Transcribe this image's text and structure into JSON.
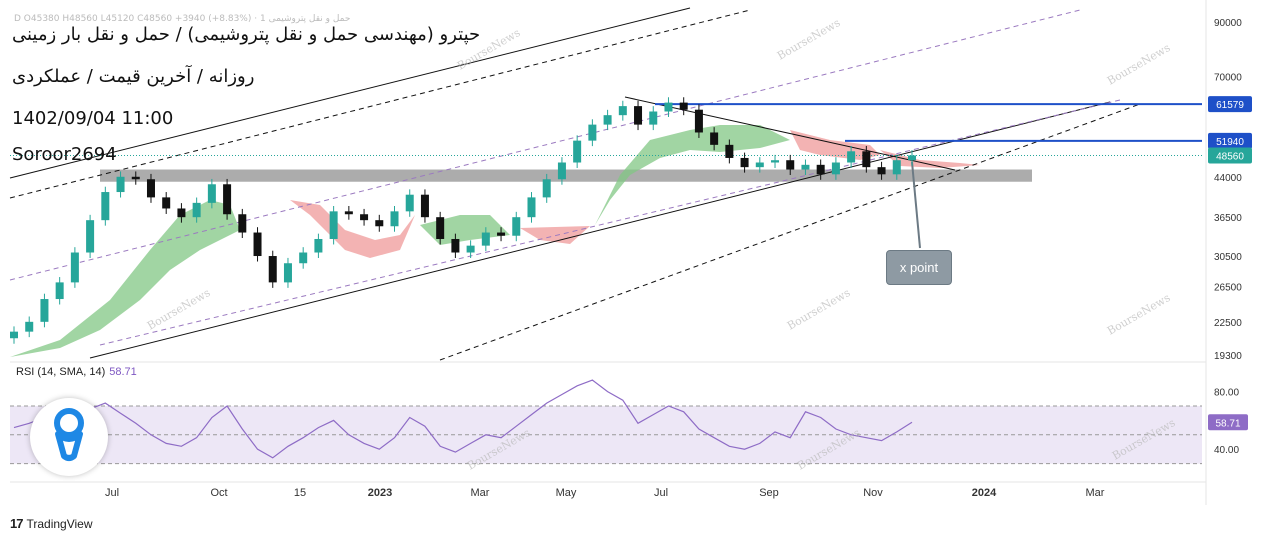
{
  "overlay": {
    "title": "حپترو (مهندسی حمل و نقل پتروشیمی) / حمل و نقل بار زمینی",
    "subtitle": "روزانه / آخرین قیمت / عملکردی",
    "datetime": "1402/09/04 11:00",
    "author": "Soroor2694",
    "header_ohlc": "حمل و نقل پتروشیمی 1 · D O45380 H48560 L45120 C48560 +3940 (+8.83%)",
    "annotation": "x point",
    "watermark": "BourseNews",
    "footer": "TradingView",
    "footer_logo": "17"
  },
  "colors": {
    "bull": "#26a69a",
    "bear": "#111111",
    "cloud_bull": "#81c784",
    "cloud_bear": "#ef9a9a",
    "level_line": "#1e50c8",
    "rsi_line": "#8e6cc6",
    "rsi_band": "#ede7f6",
    "trendline": "#111111",
    "channel_dash": "#111111",
    "purple_dash": "#9b7ac0",
    "support_zone": "#9e9e9e"
  },
  "chart_data": {
    "type": "candlestick",
    "price_axis": {
      "scale": "log",
      "ticks": [
        90000,
        70000,
        61579,
        51940,
        48560,
        44000,
        36500,
        30500,
        26500,
        22500,
        19300
      ],
      "labels": [
        "90000",
        "70000",
        "61579",
        "51940",
        "48560",
        "44000",
        "36500",
        "30500",
        "26500",
        "22500",
        "19300"
      ]
    },
    "time_axis": {
      "labels": [
        "Jul",
        "Oct",
        "15",
        "2023",
        "Mar",
        "May",
        "Jul",
        "Sep",
        "Nov",
        "2024",
        "Mar"
      ]
    },
    "highlighted_levels": [
      {
        "value": 61579,
        "label": "61579"
      },
      {
        "value": 51940,
        "label": "51940"
      },
      {
        "value": 48560,
        "label": "48560"
      }
    ],
    "support_zone": [
      43000,
      45500
    ],
    "close_series_approx": [
      21500,
      22500,
      25000,
      27000,
      31000,
      36000,
      41000,
      44000,
      43500,
      40000,
      38000,
      36500,
      39000,
      42500,
      37000,
      34000,
      30500,
      27000,
      29500,
      31000,
      33000,
      37500,
      37000,
      36000,
      35000,
      37500,
      40500,
      36500,
      33000,
      31000,
      32000,
      34000,
      33500,
      36500,
      40000,
      43500,
      47000,
      52000,
      56000,
      58500,
      61000,
      56000,
      59500,
      62000,
      60000,
      54000,
      51000,
      48000,
      46000,
      47000,
      47500,
      45500,
      46500,
      44500,
      47000,
      49500,
      46000,
      44500,
      47500,
      48560
    ],
    "rsi": {
      "label": "RSI (14, SMA, 14)",
      "value": 58.71,
      "value_label": "58.71",
      "ticks": [
        80,
        40
      ],
      "tick_labels": [
        "80.00",
        "40.00"
      ],
      "band": [
        30,
        70
      ],
      "series_approx": [
        55,
        58,
        62,
        56,
        64,
        68,
        72,
        65,
        58,
        50,
        44,
        42,
        48,
        62,
        70,
        54,
        40,
        34,
        42,
        48,
        55,
        60,
        50,
        44,
        40,
        48,
        62,
        56,
        42,
        38,
        44,
        50,
        48,
        56,
        64,
        72,
        78,
        84,
        88,
        80,
        74,
        58,
        64,
        70,
        66,
        54,
        48,
        42,
        40,
        44,
        52,
        48,
        66,
        62,
        54,
        50,
        48,
        46,
        52,
        58.71
      ]
    }
  }
}
